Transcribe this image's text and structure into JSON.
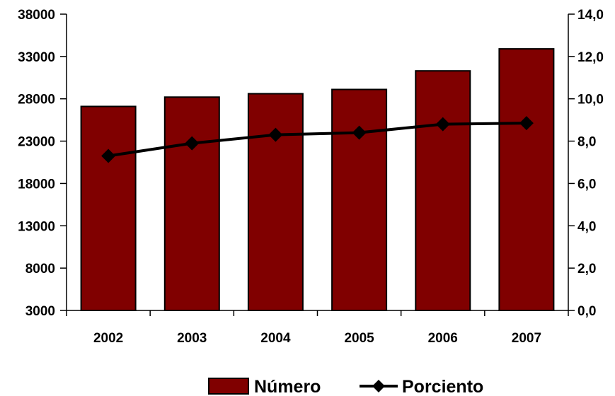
{
  "chart_data": {
    "type": "bar",
    "categories": [
      "2002",
      "2003",
      "2004",
      "2005",
      "2006",
      "2007"
    ],
    "series": [
      {
        "name": "Número",
        "type": "bar",
        "axis": "left",
        "color": "#800000",
        "values": [
          27100,
          28200,
          28600,
          29100,
          31300,
          33900
        ]
      },
      {
        "name": "Porciento",
        "type": "line",
        "axis": "right",
        "color": "#000000",
        "marker": "diamond",
        "values": [
          7.3,
          7.9,
          8.3,
          8.4,
          8.8,
          8.85
        ]
      }
    ],
    "y_left": {
      "range": [
        3000,
        38000
      ],
      "ticks": [
        "3000",
        "8000",
        "13000",
        "18000",
        "23000",
        "28000",
        "33000",
        "38000"
      ]
    },
    "y_right": {
      "range": [
        0,
        14
      ],
      "ticks": [
        "0,0",
        "2,0",
        "4,0",
        "6,0",
        "8,0",
        "10,0",
        "12,0",
        "14,0"
      ]
    },
    "grid": false,
    "legend_position": "bottom",
    "title": "",
    "xlabel": "",
    "ylabel": ""
  }
}
